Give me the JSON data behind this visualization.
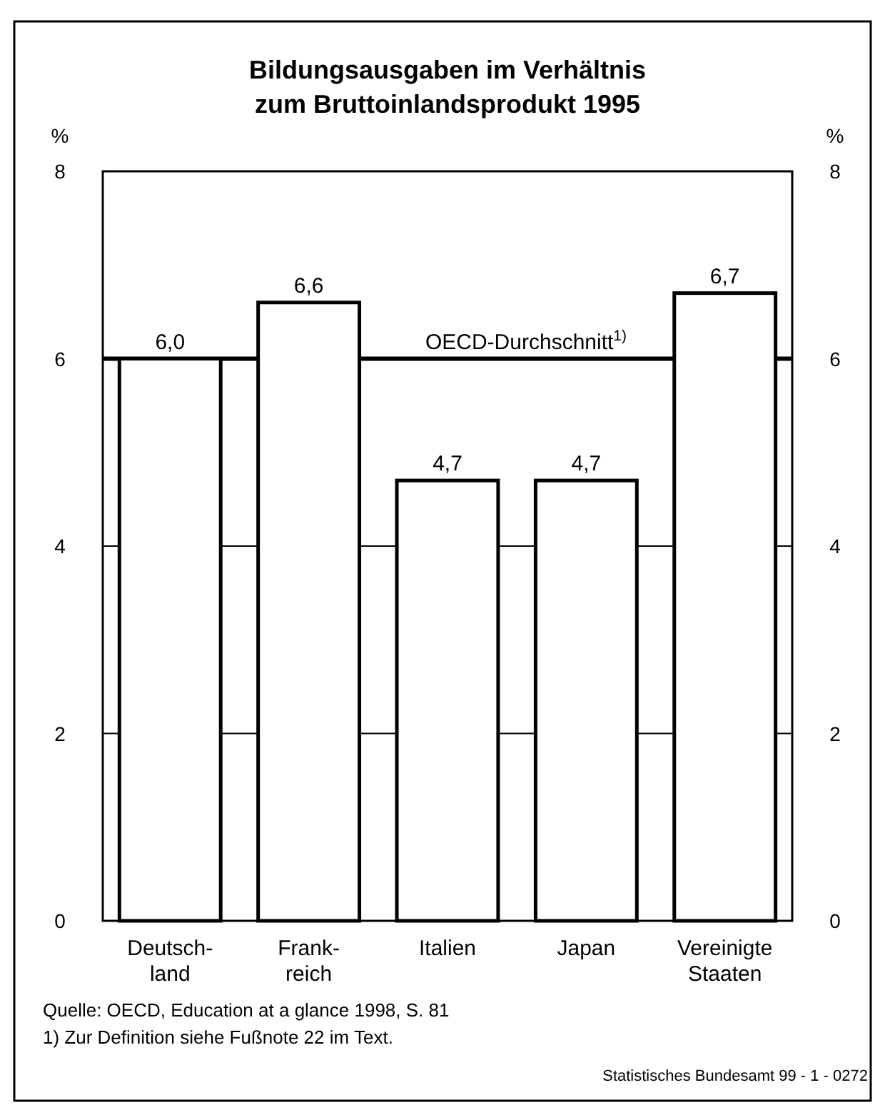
{
  "chart_data": {
    "type": "bar",
    "title": "Bildungsausgaben im Verhältnis\nzum Bruttoinlandsprodukt 1995",
    "categories": [
      "Deutsch-\nland",
      "Frank-\nreich",
      "Italien",
      "Japan",
      "Vereinigte\nStaaten"
    ],
    "values": [
      6.0,
      6.6,
      4.7,
      4.7,
      6.7
    ],
    "value_labels": [
      "6,0",
      "6,6",
      "4,7",
      "4,7",
      "6,7"
    ],
    "color": "#ffffff",
    "ylabel": "%",
    "y2label": "%",
    "ylim": [
      0,
      8
    ],
    "yticks": [
      0,
      2,
      4,
      6,
      8
    ],
    "y2lim": [
      0,
      8
    ],
    "y2ticks": [
      0,
      2,
      4,
      6,
      8
    ],
    "grid": "y",
    "ref_lines": [
      {
        "axis": "y",
        "value": 6,
        "label": "OECD-Durchschnitt$^{1)}$",
        "color": "#000000"
      }
    ],
    "annotations": [
      "Quelle: OECD, Education at a glance 1998, S. 81",
      "1) Zur Definition siehe Fußnote 22 im Text.",
      "Statistisches Bundesamt 99 - 1 - 0272"
    ]
  }
}
